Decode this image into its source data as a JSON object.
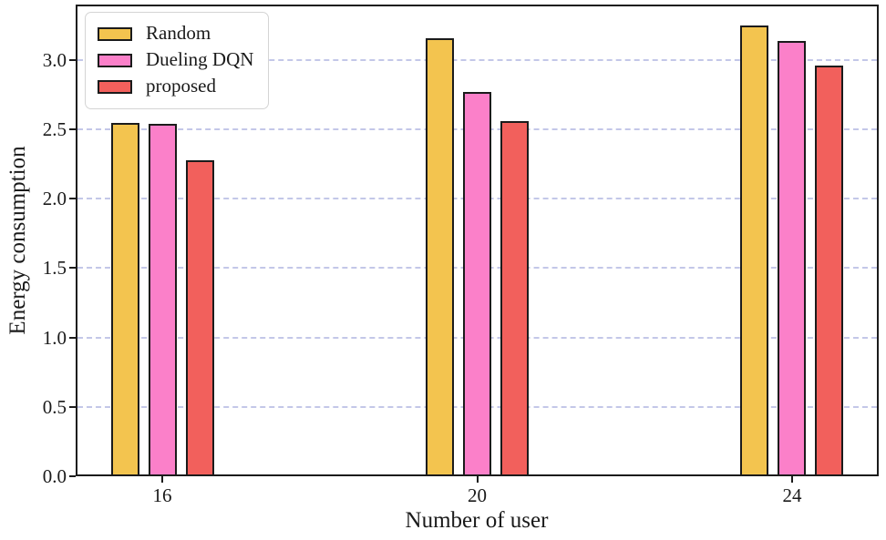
{
  "chart_data": {
    "type": "bar",
    "title": "",
    "xlabel": "Number of user",
    "ylabel": "Energy consumption",
    "categories": [
      16,
      20,
      24
    ],
    "series": [
      {
        "name": "Random",
        "color": "#f3c44f",
        "values": [
          2.55,
          3.16,
          3.25
        ]
      },
      {
        "name": "Dueling DQN",
        "color": "#fb80c9",
        "values": [
          2.54,
          2.77,
          3.14
        ]
      },
      {
        "name": "proposed",
        "color": "#f2605c",
        "values": [
          2.28,
          2.56,
          2.96
        ]
      }
    ],
    "ylim": [
      0,
      3.4
    ],
    "yticks": [
      0.0,
      0.5,
      1.0,
      1.5,
      2.0,
      2.5,
      3.0
    ],
    "ytick_labels": [
      "0.0",
      "0.5",
      "1.0",
      "1.5",
      "2.0",
      "2.5",
      "3.0"
    ],
    "xlim": [
      14.9,
      25.1
    ],
    "xtick_labels": [
      "16",
      "20",
      "24"
    ],
    "grid": "horizontal-dashed",
    "grid_color": "#c3c7e8",
    "bar_edge_color": "#1b1b1b",
    "axis_color": "#1b1b1b",
    "legend_position": "upper-left"
  }
}
